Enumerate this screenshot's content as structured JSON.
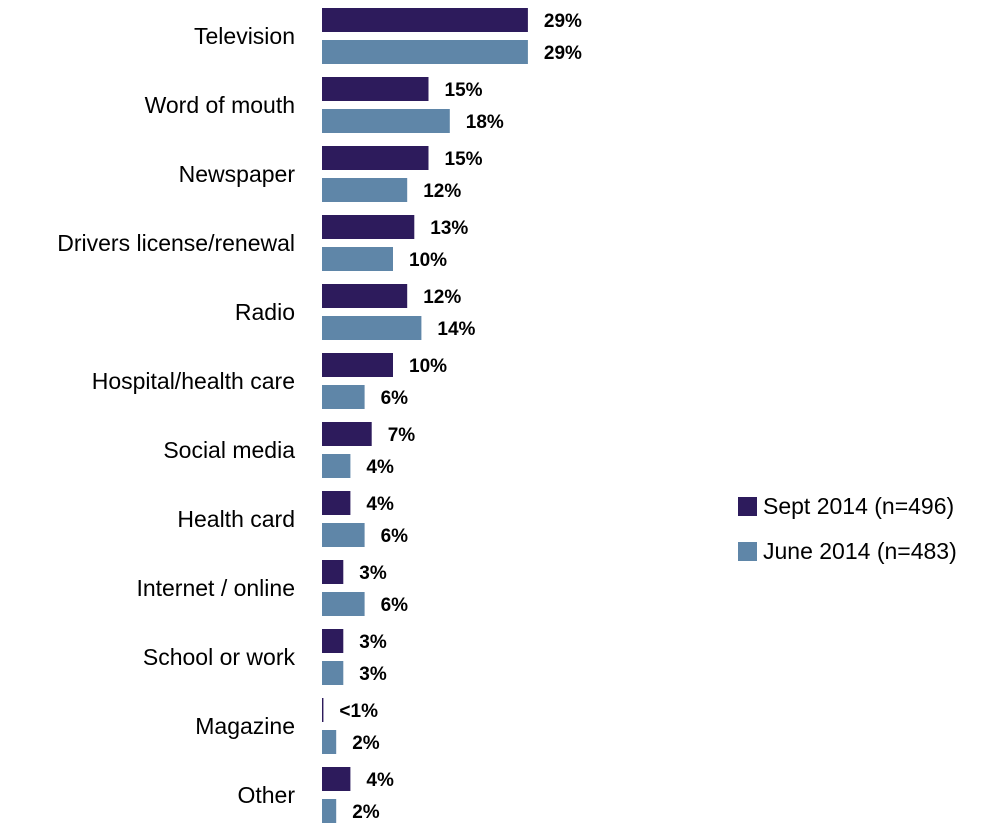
{
  "chart_data": {
    "type": "bar",
    "orientation": "horizontal",
    "categories": [
      "Television",
      "Word of mouth",
      "Newspaper",
      "Drivers license/renewal",
      "Radio",
      "Hospital/health care",
      "Social media",
      "Health card",
      "Internet / online",
      "School or work",
      "Magazine",
      "Other"
    ],
    "series": [
      {
        "name": "Sept 2014 (n=496)",
        "color": "#2d1b5c",
        "values": [
          29,
          15,
          15,
          13,
          12,
          10,
          7,
          4,
          3,
          3,
          0.2,
          4
        ],
        "labels": [
          "29%",
          "15%",
          "15%",
          "13%",
          "12%",
          "10%",
          "7%",
          "4%",
          "3%",
          "3%",
          "<1%",
          "4%"
        ]
      },
      {
        "name": "June 2014 (n=483)",
        "color": "#5f86a8",
        "values": [
          29,
          18,
          12,
          10,
          14,
          6,
          4,
          6,
          6,
          3,
          2,
          2
        ],
        "labels": [
          "29%",
          "18%",
          "12%",
          "10%",
          "14%",
          "6%",
          "4%",
          "6%",
          "6%",
          "3%",
          "2%",
          "2%"
        ]
      }
    ],
    "legend_position": "right",
    "grid": false
  }
}
